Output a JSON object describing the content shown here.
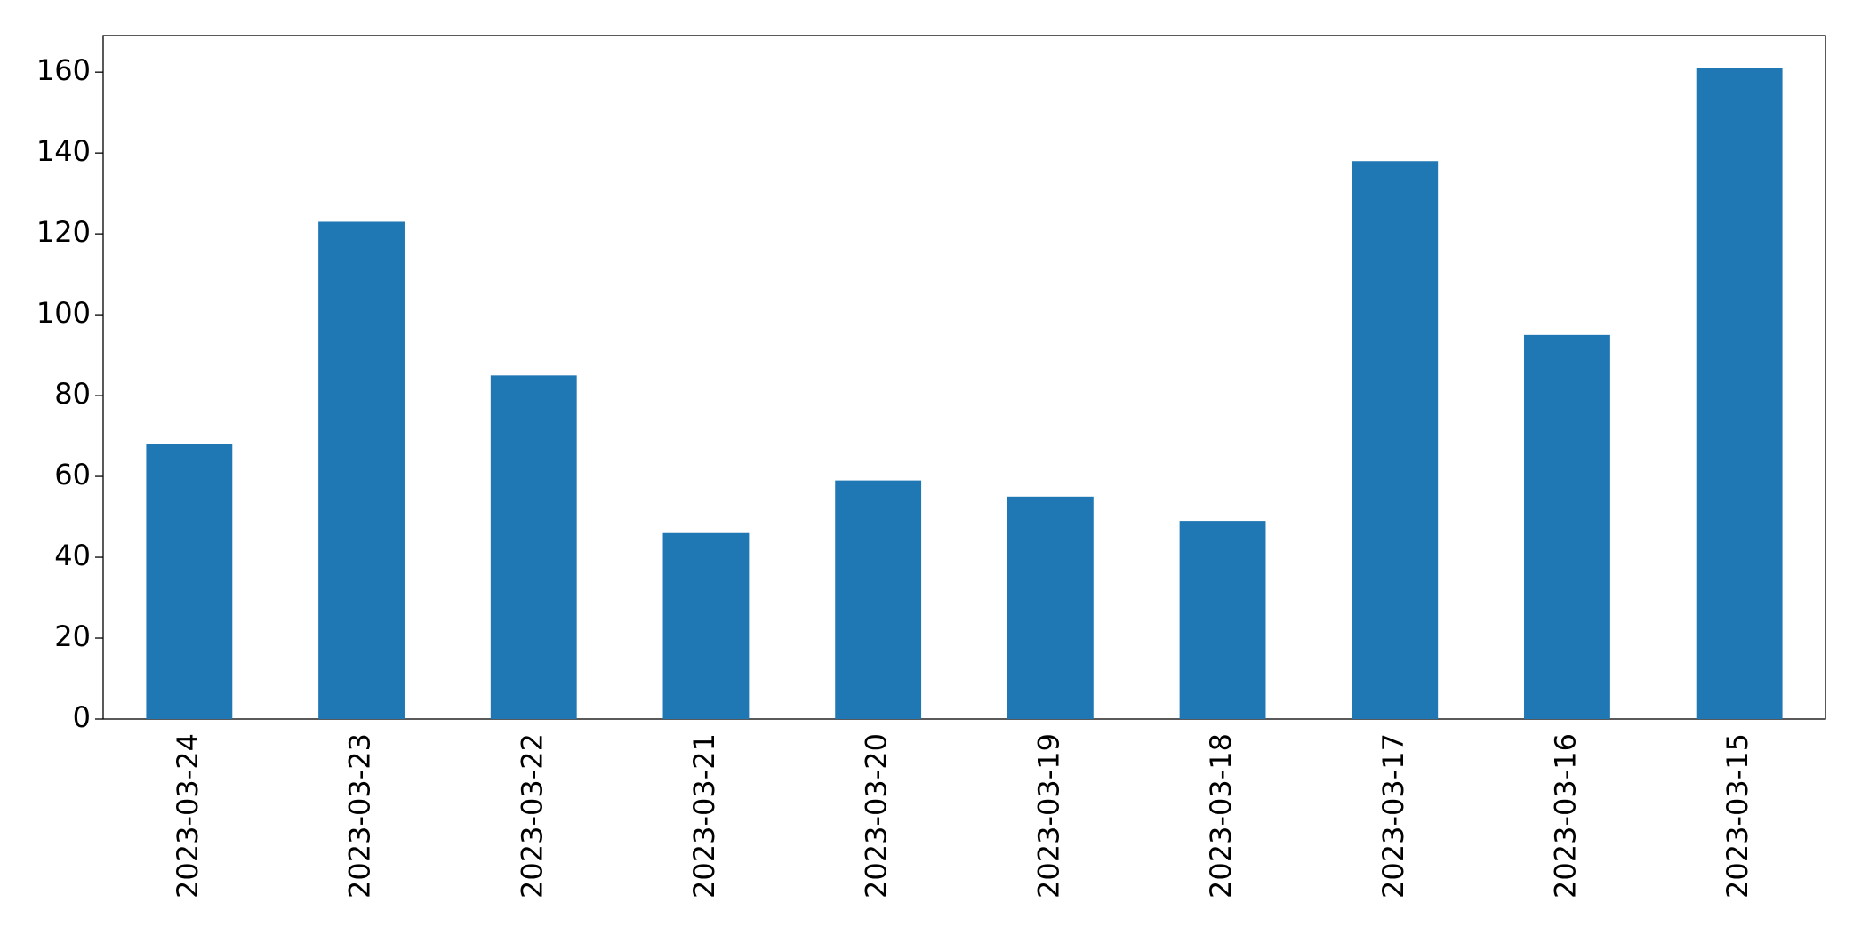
{
  "chart_data": {
    "type": "bar",
    "categories": [
      "2023-03-24",
      "2023-03-23",
      "2023-03-22",
      "2023-03-21",
      "2023-03-20",
      "2023-03-19",
      "2023-03-18",
      "2023-03-17",
      "2023-03-16",
      "2023-03-15"
    ],
    "values": [
      68,
      123,
      85,
      46,
      59,
      55,
      49,
      138,
      95,
      161
    ],
    "color": "#1f77b4",
    "ylim": [
      0,
      169.05
    ],
    "yticks": [
      0,
      20,
      40,
      60,
      80,
      100,
      120,
      140,
      160
    ],
    "grid": false
  }
}
